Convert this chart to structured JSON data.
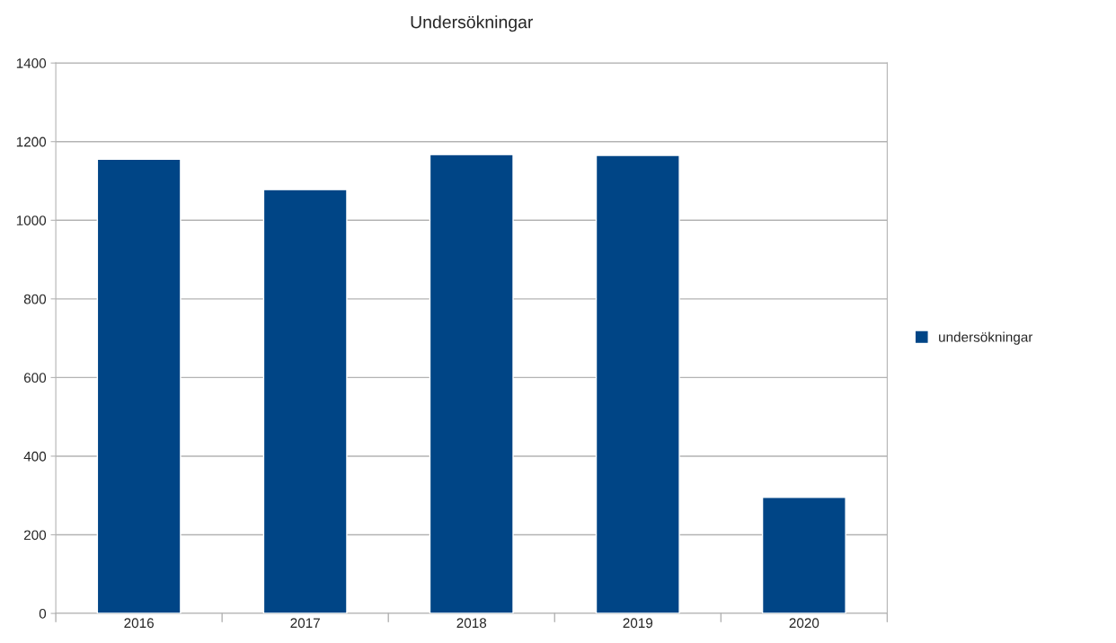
{
  "chart_data": {
    "type": "bar",
    "title": "Undersökningar",
    "categories": [
      "2016",
      "2017",
      "2018",
      "2019",
      "2020"
    ],
    "series": [
      {
        "name": "undersökningar",
        "color": "#004586",
        "values": [
          1155,
          1078,
          1167,
          1165,
          295
        ]
      }
    ],
    "ylim": [
      0,
      1400
    ],
    "yticks": [
      0,
      200,
      400,
      600,
      800,
      1000,
      1200,
      1400
    ],
    "grid": "y",
    "legend": "right"
  }
}
